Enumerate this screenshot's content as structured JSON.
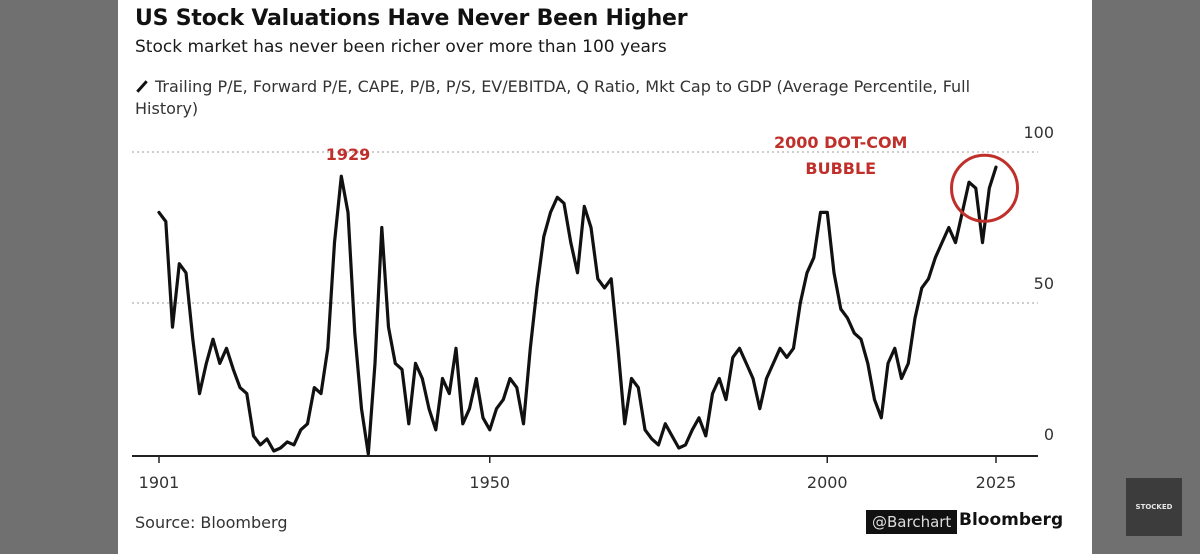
{
  "header": {
    "title": "US Stock Valuations Have Never Been Higher",
    "subtitle": "Stock market has never been richer over more than 100 years"
  },
  "legend": {
    "series_label": "Trailing P/E, Forward P/E, CAPE, P/B, P/S, EV/EBITDA, Q Ratio, Mkt Cap to GDP (Average Percentile, Full History)"
  },
  "annotations": {
    "peak_1929": "1929",
    "dotcom_line1": "2000 DOT-COM",
    "dotcom_line2": "BUBBLE"
  },
  "footer": {
    "source": "Source: Bloomberg",
    "barchart": "@Barchart",
    "bloomberg": "Bloomberg"
  },
  "watermark": "STOCKED",
  "colors": {
    "series": "#111111",
    "annotation": "#c0302b",
    "gridline": "#bdbdbd",
    "axis": "#222222",
    "tick_text": "#333333"
  },
  "chart_data": {
    "type": "line",
    "title": "US Stock Valuations Have Never Been Higher",
    "subtitle": "Stock market has never been richer over more than 100 years",
    "xlabel": "",
    "ylabel": "",
    "xlim": [
      1901,
      2025
    ],
    "ylim": [
      0,
      100
    ],
    "x_ticks": [
      1901,
      1950,
      2000,
      2025
    ],
    "y_ticks": [
      0,
      50,
      100
    ],
    "y_axis_side": "right",
    "grid": "horizontal dotted at 50 and 100",
    "legend": "top-left",
    "series": [
      {
        "name": "Trailing P/E, Forward P/E, CAPE, P/B, P/S, EV/EBITDA, Q Ratio, Mkt Cap to GDP (Average Percentile, Full History)",
        "x": [
          1901,
          1902,
          1903,
          1904,
          1905,
          1906,
          1907,
          1908,
          1909,
          1910,
          1911,
          1912,
          1913,
          1914,
          1915,
          1916,
          1917,
          1918,
          1919,
          1920,
          1921,
          1922,
          1923,
          1924,
          1925,
          1926,
          1927,
          1928,
          1929,
          1930,
          1931,
          1932,
          1933,
          1934,
          1935,
          1936,
          1937,
          1938,
          1939,
          1940,
          1941,
          1942,
          1943,
          1944,
          1945,
          1946,
          1947,
          1948,
          1949,
          1950,
          1951,
          1952,
          1953,
          1954,
          1955,
          1956,
          1957,
          1958,
          1959,
          1960,
          1961,
          1962,
          1963,
          1964,
          1965,
          1966,
          1967,
          1968,
          1969,
          1970,
          1971,
          1972,
          1973,
          1974,
          1975,
          1976,
          1977,
          1978,
          1979,
          1980,
          1981,
          1982,
          1983,
          1984,
          1985,
          1986,
          1987,
          1988,
          1989,
          1990,
          1991,
          1992,
          1993,
          1994,
          1995,
          1996,
          1997,
          1998,
          1999,
          2000,
          2001,
          2002,
          2003,
          2004,
          2005,
          2006,
          2007,
          2008,
          2009,
          2010,
          2011,
          2012,
          2013,
          2014,
          2015,
          2016,
          2017,
          2018,
          2019,
          2020,
          2021,
          2022,
          2023,
          2024,
          2025
        ],
        "values": [
          80,
          77,
          42,
          63,
          60,
          38,
          20,
          30,
          38,
          30,
          35,
          28,
          22,
          20,
          6,
          3,
          5,
          1,
          2,
          4,
          3,
          8,
          10,
          22,
          20,
          35,
          70,
          92,
          80,
          40,
          15,
          0,
          30,
          75,
          42,
          30,
          28,
          10,
          30,
          25,
          15,
          8,
          25,
          20,
          35,
          10,
          15,
          25,
          12,
          8,
          15,
          18,
          25,
          22,
          10,
          35,
          55,
          72,
          80,
          85,
          83,
          70,
          60,
          82,
          75,
          58,
          55,
          58,
          35,
          10,
          25,
          22,
          8,
          5,
          3,
          10,
          6,
          2,
          3,
          8,
          12,
          6,
          20,
          25,
          18,
          32,
          35,
          30,
          25,
          15,
          25,
          30,
          35,
          32,
          35,
          50,
          60,
          65,
          80,
          80,
          60,
          48,
          45,
          40,
          38,
          30,
          18,
          12,
          30,
          35,
          25,
          30,
          45,
          55,
          58,
          65,
          70,
          75,
          70,
          80,
          90,
          88,
          70,
          88,
          95
        ]
      }
    ]
  }
}
